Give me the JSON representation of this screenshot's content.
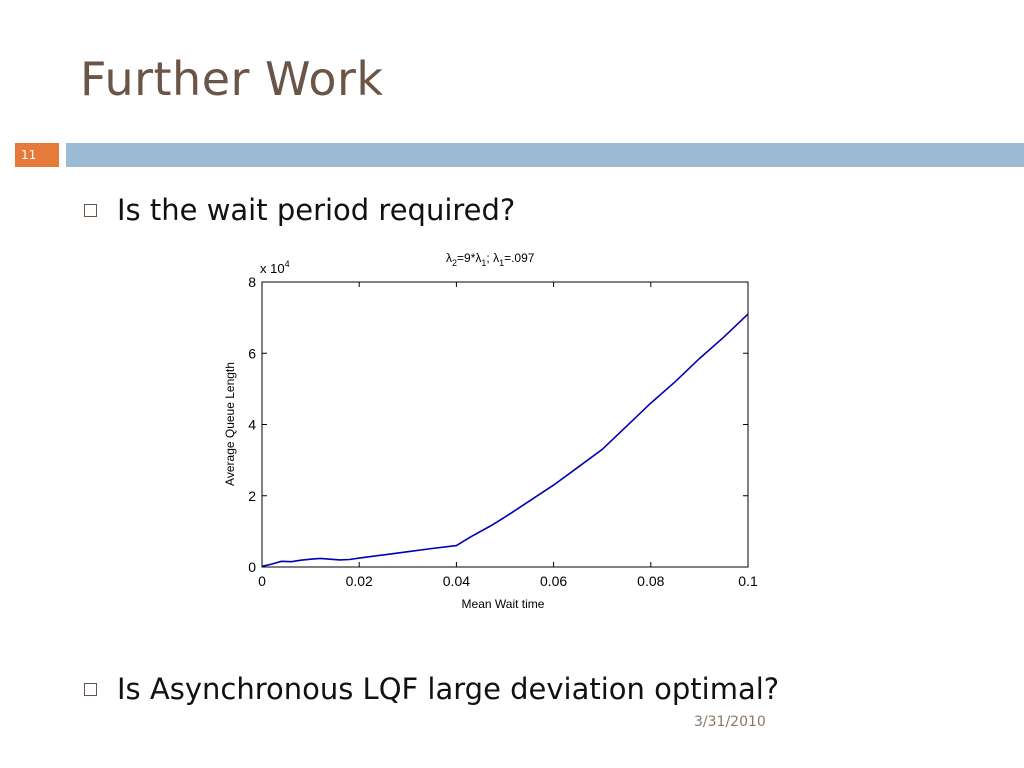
{
  "slide": {
    "title": "Further Work",
    "slide_number": "11",
    "bullets": [
      "Is the wait period required?",
      "Is Asynchronous LQF large deviation optimal?"
    ],
    "date": "3/31/2010",
    "colors": {
      "title": "#6b5547",
      "number_band": "#e57a3a",
      "header_band": "#9dbad5",
      "line": "#0000b4"
    },
    "icons": {
      "bullet": "square-bullet-icon"
    }
  },
  "chart_data": {
    "type": "line",
    "title_parts": {
      "lambda": "λ",
      "sub2": "2",
      "sub1": "1",
      "eq_mult": "=9*",
      "sep": "; ",
      "eq_val": "=.097"
    },
    "xlabel": "Mean Wait time",
    "ylabel": "Average Queue Length",
    "y_multiplier": "x 10",
    "y_multiplier_exp": "4",
    "xlim": [
      0,
      0.1
    ],
    "ylim": [
      0,
      8
    ],
    "xticks": [
      0,
      0.02,
      0.04,
      0.06,
      0.08,
      0.1
    ],
    "xtick_labels": [
      "0",
      "0.02",
      "0.04",
      "0.06",
      "0.08",
      "0.1"
    ],
    "yticks": [
      0,
      2,
      4,
      6,
      8
    ],
    "ytick_labels": [
      "0",
      "2",
      "4",
      "6",
      "8"
    ],
    "grid": false,
    "series": [
      {
        "x": [
          0,
          0.002,
          0.004,
          0.006,
          0.008,
          0.01,
          0.012,
          0.014,
          0.016,
          0.018,
          0.02,
          0.025,
          0.03,
          0.035,
          0.04,
          0.043,
          0.047,
          0.05,
          0.055,
          0.06,
          0.065,
          0.07,
          0.075,
          0.08,
          0.085,
          0.09,
          0.095,
          0.1
        ],
        "y": [
          0.02,
          0.08,
          0.16,
          0.15,
          0.19,
          0.22,
          0.24,
          0.22,
          0.2,
          0.21,
          0.25,
          0.34,
          0.43,
          0.52,
          0.6,
          0.85,
          1.15,
          1.4,
          1.85,
          2.3,
          2.8,
          3.3,
          3.95,
          4.6,
          5.2,
          5.85,
          6.45,
          7.1
        ]
      }
    ]
  }
}
